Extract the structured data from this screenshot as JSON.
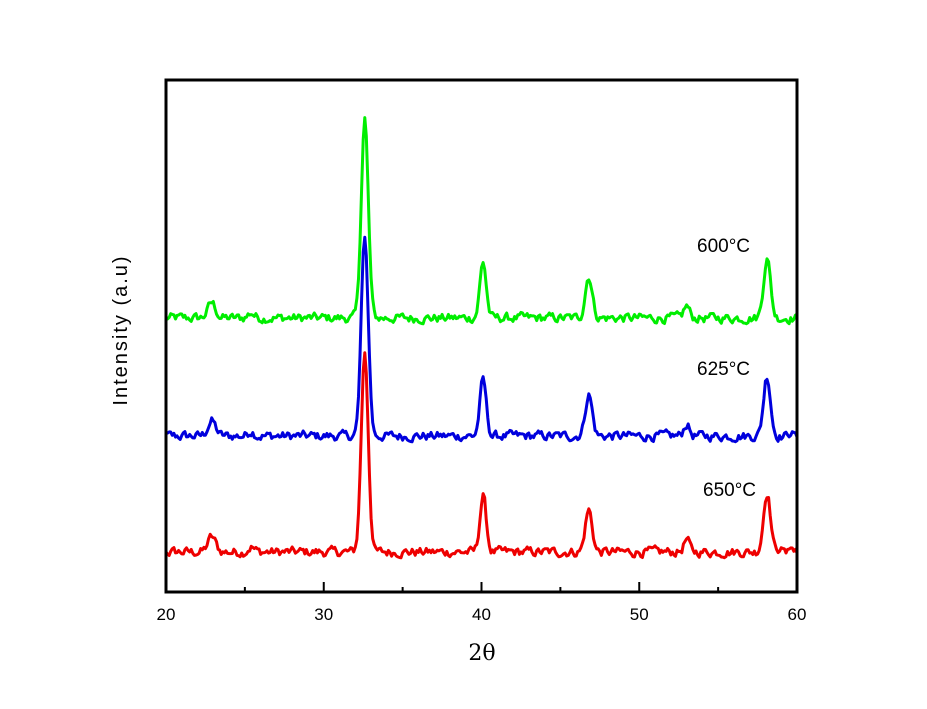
{
  "chart_data": {
    "type": "line",
    "title": "",
    "xlabel": "2θ",
    "ylabel": "Intensity (a.u)",
    "xlim": [
      20,
      60
    ],
    "ylim": [
      0,
      512
    ],
    "x_ticks": [
      20,
      30,
      40,
      50,
      60
    ],
    "x_tick_labels": [
      "20",
      "30",
      "40",
      "50",
      "60"
    ],
    "x_minor_ticks": [
      25,
      35,
      45,
      55
    ],
    "grid": false,
    "x_step": 0.1,
    "peaks": [
      {
        "position": 22.9,
        "intensity": 15,
        "width": 0.25
      },
      {
        "position": 25.4,
        "intensity": 5,
        "width": 0.2
      },
      {
        "position": 32.6,
        "intensity": 200,
        "width": 0.22
      },
      {
        "position": 40.1,
        "intensity": 56,
        "width": 0.2
      },
      {
        "position": 46.8,
        "intensity": 42,
        "width": 0.22
      },
      {
        "position": 53.0,
        "intensity": 12,
        "width": 0.18
      },
      {
        "position": 58.1,
        "intensity": 60,
        "width": 0.22
      }
    ],
    "noise_amplitude": 4,
    "series": [
      {
        "name": "600°C",
        "label": "600°C",
        "color": "#00ee00",
        "baseline": 274
      },
      {
        "name": "625°C",
        "label": "625°C",
        "color": "#0000dd",
        "baseline": 156
      },
      {
        "name": "650°C",
        "label": "650°C",
        "color": "#ee0000",
        "baseline": 40
      }
    ]
  }
}
